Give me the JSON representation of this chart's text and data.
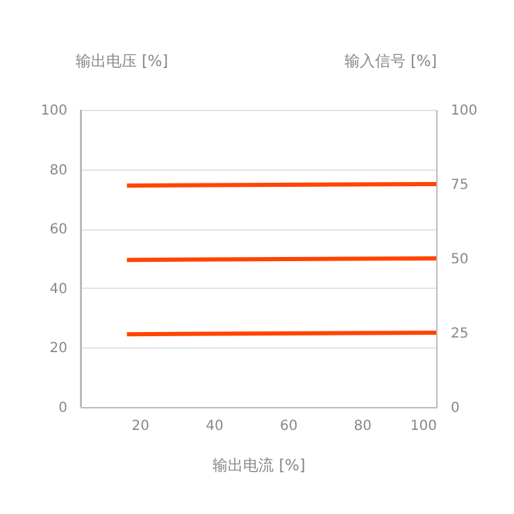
{
  "chart_data": {
    "type": "line",
    "xlabel": "输出电流 [%]",
    "ylabel": "输出电压 [%]",
    "y2label": "输入信号 [%]",
    "xlim": [
      4,
      100
    ],
    "xticks": [
      20,
      40,
      60,
      80,
      100
    ],
    "ylim": [
      0,
      100
    ],
    "yticks": [
      0,
      20,
      40,
      60,
      80,
      100
    ],
    "y2lim": [
      0,
      100
    ],
    "y2ticks": [
      0,
      25,
      50,
      75,
      100
    ],
    "grid": "y",
    "marker": "none",
    "line_style": "solid",
    "x": [
      16.5,
      100
    ],
    "series": [
      {
        "color": "#ff4500",
        "axis": "y2",
        "values": [
          74.5,
          75
        ]
      },
      {
        "color": "#ff4500",
        "axis": "y2",
        "values": [
          49.5,
          50
        ]
      },
      {
        "color": "#ff4500",
        "axis": "y2",
        "values": [
          24.5,
          25
        ]
      }
    ]
  }
}
